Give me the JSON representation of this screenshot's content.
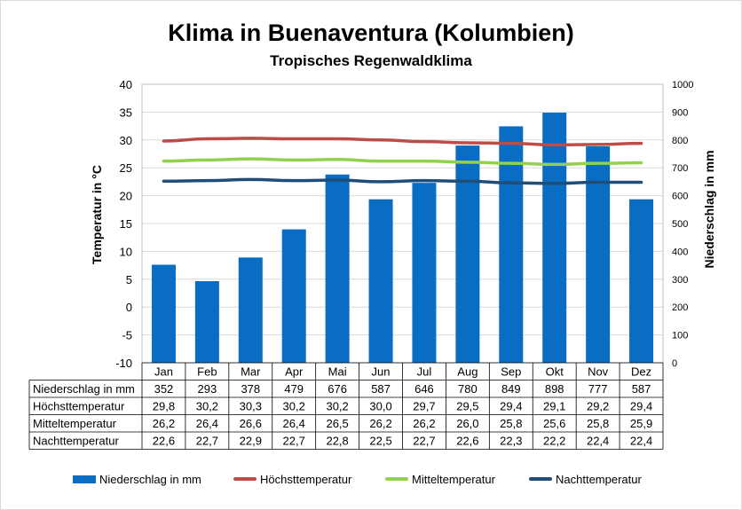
{
  "title": "Klima in Buenaventura (Kolumbien)",
  "subtitle": "Tropisches Regenwaldklima",
  "colors": {
    "precip": "#0A6DC4",
    "hoechst": "#BE4B48",
    "mittel": "#92D050",
    "nacht": "#1F4E79"
  },
  "chart_data": {
    "type": "bar",
    "title": "Klima in Buenaventura (Kolumbien)",
    "subtitle": "Tropisches Regenwaldklima",
    "categories": [
      "Jan",
      "Feb",
      "Mar",
      "Apr",
      "Mai",
      "Jun",
      "Jul",
      "Aug",
      "Sep",
      "Okt",
      "Nov",
      "Dez"
    ],
    "ylabel": "Temperatur in °C",
    "y2label": "Niederschlag in mm",
    "ylim": [
      -10,
      40
    ],
    "y2lim": [
      0,
      1000
    ],
    "yticks": [
      "40",
      "35",
      "30",
      "25",
      "20",
      "15",
      "10",
      "5",
      "0",
      "-5",
      "-10"
    ],
    "y2ticks": [
      "1000",
      "900",
      "800",
      "700",
      "600",
      "500",
      "400",
      "300",
      "200",
      "100",
      "0"
    ],
    "series": [
      {
        "name": "Niederschlag in mm",
        "type": "bar",
        "axis": "right",
        "values": [
          352,
          293,
          378,
          479,
          676,
          587,
          646,
          780,
          849,
          898,
          777,
          587
        ],
        "labels": [
          "352",
          "293",
          "378",
          "479",
          "676",
          "587",
          "646",
          "780",
          "849",
          "898",
          "777",
          "587"
        ]
      },
      {
        "name": "Höchsttemperatur",
        "type": "line",
        "axis": "left",
        "values": [
          29.8,
          30.2,
          30.3,
          30.2,
          30.2,
          30.0,
          29.7,
          29.5,
          29.4,
          29.1,
          29.2,
          29.4
        ],
        "labels": [
          "29,8",
          "30,2",
          "30,3",
          "30,2",
          "30,2",
          "30,0",
          "29,7",
          "29,5",
          "29,4",
          "29,1",
          "29,2",
          "29,4"
        ]
      },
      {
        "name": "Mitteltemperatur",
        "type": "line",
        "axis": "left",
        "values": [
          26.2,
          26.4,
          26.6,
          26.4,
          26.5,
          26.2,
          26.2,
          26.0,
          25.8,
          25.6,
          25.8,
          25.9
        ],
        "labels": [
          "26,2",
          "26,4",
          "26,6",
          "26,4",
          "26,5",
          "26,2",
          "26,2",
          "26,0",
          "25,8",
          "25,6",
          "25,8",
          "25,9"
        ]
      },
      {
        "name": "Nachttemperatur",
        "type": "line",
        "axis": "left",
        "values": [
          22.6,
          22.7,
          22.9,
          22.7,
          22.8,
          22.5,
          22.7,
          22.6,
          22.3,
          22.2,
          22.4,
          22.4
        ],
        "labels": [
          "22,6",
          "22,7",
          "22,9",
          "22,7",
          "22,8",
          "22,5",
          "22,7",
          "22,6",
          "22,3",
          "22,2",
          "22,4",
          "22,4"
        ]
      }
    ],
    "grid": "horizontal",
    "legend": "bottom"
  }
}
